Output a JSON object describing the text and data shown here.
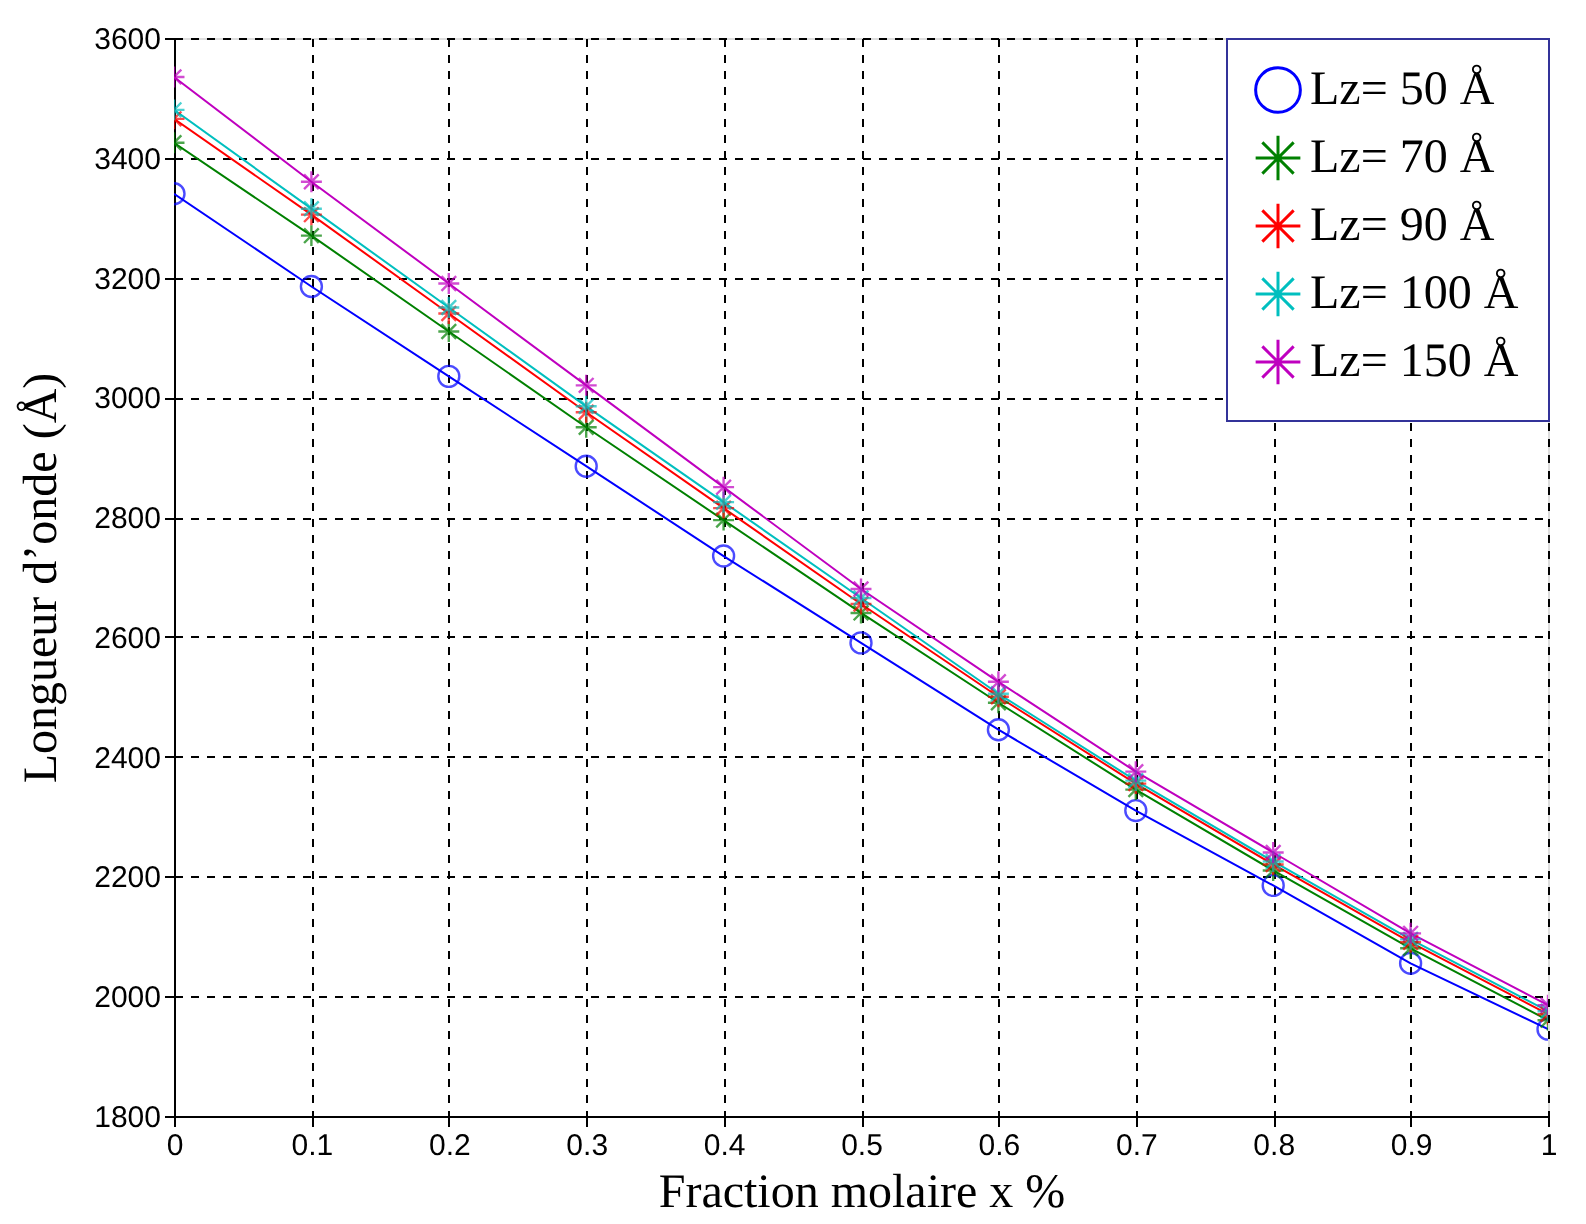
{
  "chart_data": {
    "type": "line",
    "xlabel": "Fraction molaire x %",
    "ylabel": "Longueur d’onde (Å)",
    "x": [
      0,
      0.1,
      0.2,
      0.3,
      0.4,
      0.5,
      0.6,
      0.7,
      0.8,
      0.9,
      1
    ],
    "series": [
      {
        "name": "Lz= 50 Å",
        "color": "#0000ff",
        "marker": "circle",
        "values": [
          3340,
          3185,
          3035,
          2885,
          2735,
          2590,
          2445,
          2310,
          2185,
          2055,
          1945
        ]
      },
      {
        "name": "Lz= 70 Å",
        "color": "#008000",
        "marker": "cross",
        "values": [
          3425,
          3270,
          3110,
          2950,
          2795,
          2640,
          2490,
          2345,
          2210,
          2080,
          1960
        ]
      },
      {
        "name": "Lz= 90 Å",
        "color": "#ff0000",
        "marker": "cross",
        "values": [
          3465,
          3305,
          3140,
          2975,
          2815,
          2655,
          2500,
          2355,
          2220,
          2090,
          1970
        ]
      },
      {
        "name": "Lz= 100 Å",
        "color": "#00bfbf",
        "marker": "cross",
        "values": [
          3480,
          3315,
          3150,
          2985,
          2825,
          2665,
          2505,
          2360,
          2225,
          2095,
          1975
        ]
      },
      {
        "name": "Lz= 150 Å",
        "color": "#bf00bf",
        "marker": "cross",
        "values": [
          3535,
          3360,
          3190,
          3020,
          2850,
          2680,
          2525,
          2375,
          2240,
          2105,
          1985
        ]
      }
    ],
    "xlim": [
      0,
      1
    ],
    "xticks": [
      0,
      0.1,
      0.2,
      0.3,
      0.4,
      0.5,
      0.6,
      0.7,
      0.8,
      0.9,
      1
    ],
    "ylim": [
      1800,
      3600
    ],
    "yticks": [
      1800,
      2000,
      2200,
      2400,
      2600,
      2800,
      3000,
      3200,
      3400,
      3600
    ],
    "grid": true,
    "legend": "top right",
    "line_style": "solid"
  }
}
